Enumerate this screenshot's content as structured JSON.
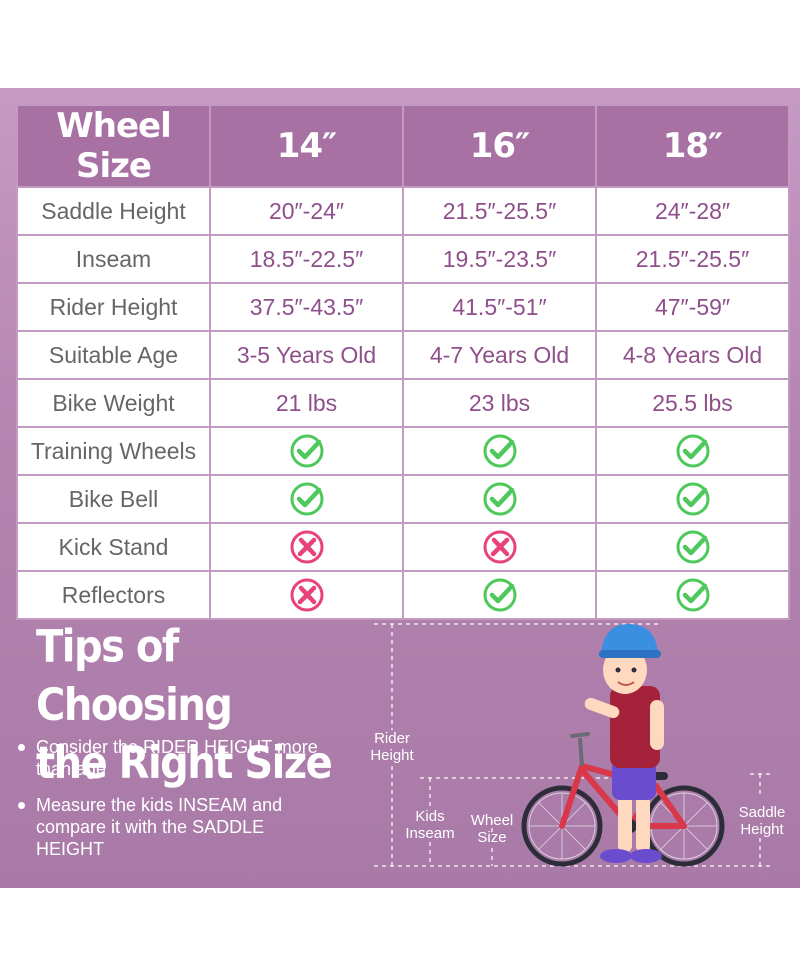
{
  "table": {
    "headers": [
      "Wheel Size",
      "14″",
      "16″",
      "18″"
    ],
    "rows": [
      {
        "label": "Saddle Height",
        "cells": [
          "20″-24″",
          "21.5″-25.5″",
          "24″-28″"
        ]
      },
      {
        "label": "Inseam",
        "cells": [
          "18.5″-22.5″",
          "19.5″-23.5″",
          "21.5″-25.5″"
        ]
      },
      {
        "label": "Rider Height",
        "cells": [
          "37.5″-43.5″",
          "41.5″-51″",
          "47″-59″"
        ]
      },
      {
        "label": "Suitable Age",
        "cells": [
          "3-5 Years Old",
          "4-7 Years Old",
          "4-8 Years Old"
        ]
      },
      {
        "label": "Bike Weight",
        "cells": [
          "21 lbs",
          "23 lbs",
          "25.5 lbs"
        ]
      },
      {
        "label": "Training Wheels",
        "icons": [
          "check-icon",
          "check-icon",
          "check-icon"
        ]
      },
      {
        "label": "Bike Bell",
        "icons": [
          "check-icon",
          "check-icon",
          "check-icon"
        ]
      },
      {
        "label": "Kick Stand",
        "icons": [
          "cross-icon",
          "cross-icon",
          "check-icon"
        ]
      },
      {
        "label": "Reflectors",
        "icons": [
          "cross-icon",
          "check-icon",
          "check-icon"
        ]
      }
    ]
  },
  "tips": {
    "title_line1": "Tips of Choosing",
    "title_line2": "the Right Size",
    "items": [
      "Consider the RIDER HEIGHT more than age",
      "Measure the kids INSEAM and compare it with the SADDLE HEIGHT"
    ]
  },
  "illustration": {
    "rider_height_label": "Rider Height",
    "kids_inseam_label": "Kids Inseam",
    "wheel_size_label": "Wheel Size",
    "saddle_height_label": "Saddle Height"
  },
  "colors": {
    "panel": "#b484b1",
    "header": "#a771a4",
    "value_text": "#8e4f8b",
    "check": "#4cc95a",
    "cross": "#e8427a"
  }
}
